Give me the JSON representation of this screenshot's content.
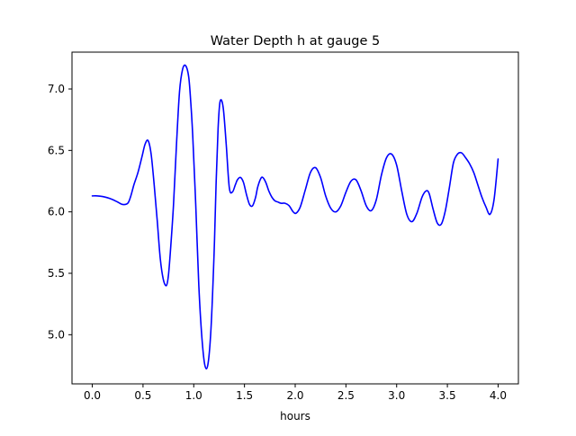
{
  "chart_data": {
    "type": "line",
    "title": "Water Depth h at gauge 5",
    "xlabel": "hours",
    "ylabel": "",
    "xlim": [
      -0.2,
      4.2
    ],
    "ylim": [
      4.6,
      7.3
    ],
    "xticks": [
      0.0,
      0.5,
      1.0,
      1.5,
      2.0,
      2.5,
      3.0,
      3.5,
      4.0
    ],
    "xtick_labels": [
      "0.0",
      "0.5",
      "1.0",
      "1.5",
      "2.0",
      "2.5",
      "3.0",
      "3.5",
      "4.0"
    ],
    "yticks": [
      5.0,
      5.5,
      6.0,
      6.5,
      7.0
    ],
    "ytick_labels": [
      "5.0",
      "5.5",
      "6.0",
      "6.5",
      "7.0"
    ],
    "grid": false,
    "legend": "none",
    "series": [
      {
        "color": "#0000ff",
        "x": [
          0.0,
          0.05,
          0.1,
          0.15,
          0.2,
          0.25,
          0.3,
          0.35,
          0.38,
          0.41,
          0.45,
          0.49,
          0.52,
          0.55,
          0.58,
          0.61,
          0.64,
          0.67,
          0.7,
          0.73,
          0.75,
          0.77,
          0.8,
          0.83,
          0.86,
          0.89,
          0.92,
          0.95,
          0.97,
          0.99,
          1.02,
          1.05,
          1.08,
          1.11,
          1.14,
          1.17,
          1.2,
          1.22,
          1.24,
          1.26,
          1.29,
          1.32,
          1.35,
          1.38,
          1.41,
          1.43,
          1.46,
          1.49,
          1.52,
          1.55,
          1.58,
          1.61,
          1.63,
          1.66,
          1.68,
          1.71,
          1.74,
          1.77,
          1.8,
          1.83,
          1.86,
          1.9,
          1.94,
          1.98,
          2.01,
          2.05,
          2.1,
          2.15,
          2.2,
          2.25,
          2.3,
          2.35,
          2.4,
          2.45,
          2.5,
          2.55,
          2.6,
          2.65,
          2.7,
          2.75,
          2.8,
          2.85,
          2.9,
          2.95,
          3.0,
          3.05,
          3.1,
          3.15,
          3.2,
          3.25,
          3.29,
          3.32,
          3.36,
          3.4,
          3.44,
          3.48,
          3.52,
          3.56,
          3.6,
          3.64,
          3.68,
          3.72,
          3.76,
          3.8,
          3.84,
          3.88,
          3.92,
          3.96,
          4.0
        ],
        "values": [
          6.13,
          6.13,
          6.125,
          6.115,
          6.1,
          6.08,
          6.06,
          6.07,
          6.13,
          6.22,
          6.32,
          6.45,
          6.55,
          6.58,
          6.47,
          6.22,
          5.93,
          5.62,
          5.45,
          5.4,
          5.48,
          5.68,
          6.05,
          6.55,
          6.98,
          7.16,
          7.19,
          7.1,
          6.9,
          6.62,
          6.05,
          5.4,
          4.98,
          4.75,
          4.76,
          5.05,
          5.65,
          6.22,
          6.68,
          6.9,
          6.85,
          6.55,
          6.2,
          6.16,
          6.22,
          6.26,
          6.28,
          6.24,
          6.14,
          6.06,
          6.05,
          6.12,
          6.2,
          6.27,
          6.28,
          6.24,
          6.17,
          6.12,
          6.09,
          6.08,
          6.07,
          6.07,
          6.05,
          6.0,
          5.99,
          6.04,
          6.18,
          6.32,
          6.36,
          6.28,
          6.13,
          6.03,
          6.0,
          6.05,
          6.16,
          6.25,
          6.26,
          6.17,
          6.05,
          6.01,
          6.1,
          6.3,
          6.44,
          6.47,
          6.38,
          6.17,
          5.98,
          5.92,
          5.99,
          6.12,
          6.17,
          6.15,
          6.02,
          5.91,
          5.9,
          6.01,
          6.2,
          6.4,
          6.47,
          6.48,
          6.44,
          6.39,
          6.32,
          6.22,
          6.12,
          6.04,
          5.98,
          6.1,
          6.43
        ]
      }
    ]
  }
}
